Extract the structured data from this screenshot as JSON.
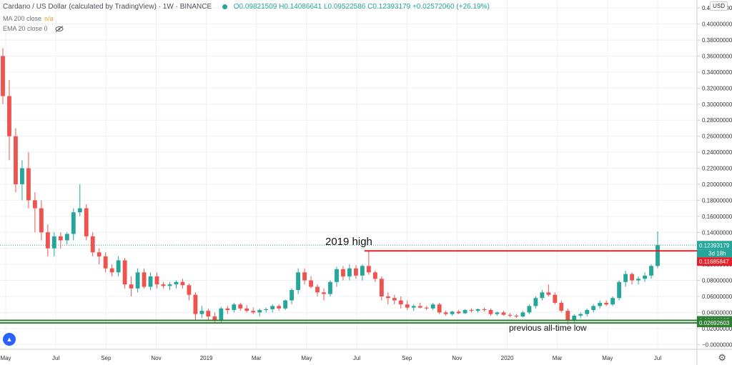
{
  "header": {
    "title": "Cardano / US Dollar (calculated by TradingView) · 1W · BINANCE",
    "ohlc": "O0.09821509 H0.14086641 L0.09522586 C0.12393179 +0.02572060 (+26.19%)"
  },
  "indicators": {
    "ma": {
      "label": "MA 200 close",
      "value": "n/a"
    },
    "ema": {
      "label": "EMA 20 close",
      "value": "0"
    }
  },
  "currency_badge": "USD",
  "colors": {
    "up": "#26a69a",
    "down": "#ef5350",
    "resistance": "#e2202a",
    "support": "#2e7d32",
    "price_line": "#26a69a"
  },
  "icons": {
    "eye": "eye-slash-icon",
    "logo": "tradingview-logo-icon",
    "settings": "gear-icon"
  },
  "chart_data": {
    "type": "candlestick",
    "timeframe": "1W",
    "x_tick_labels": [
      "May",
      "Jul",
      "Sep",
      "Nov",
      "2019",
      "Mar",
      "May",
      "Jul",
      "Sep",
      "Nov",
      "2020",
      "Mar",
      "May",
      "Jul"
    ],
    "y_tick_labels": [
      "0.42000000",
      "0.40000000",
      "0.38000000",
      "0.36000000",
      "0.34000000",
      "0.32000000",
      "0.30000000",
      "0.28000000",
      "0.26000000",
      "0.24000000",
      "0.22000000",
      "0.20000000",
      "0.18000000",
      "0.16000000",
      "0.14000000",
      "0.12000000",
      "0.10000000",
      "0.08000000",
      "0.06000000",
      "0.04000000",
      "0.02000000",
      "−0.00000000"
    ],
    "ylim": [
      -0.006,
      0.43
    ],
    "current_price": {
      "value": 0.12393179,
      "label": "0.12393179",
      "countdown": "3d 18h"
    },
    "resistance": {
      "value": 0.11685847,
      "label": "0.11685847",
      "annotation": "2019 high"
    },
    "support": [
      {
        "value": 0.03006395,
        "label": "0.03006395"
      },
      {
        "value": 0.02692603,
        "label": "0.02692603",
        "annotation": "previous all-time low"
      }
    ],
    "candles": [
      [
        0.36,
        0.37,
        0.3,
        0.31
      ],
      [
        0.31,
        0.33,
        0.23,
        0.26
      ],
      [
        0.26,
        0.27,
        0.19,
        0.2
      ],
      [
        0.2,
        0.23,
        0.18,
        0.22
      ],
      [
        0.22,
        0.24,
        0.17,
        0.18
      ],
      [
        0.18,
        0.19,
        0.14,
        0.17
      ],
      [
        0.17,
        0.18,
        0.13,
        0.14
      ],
      [
        0.14,
        0.15,
        0.11,
        0.12
      ],
      [
        0.12,
        0.14,
        0.11,
        0.135
      ],
      [
        0.135,
        0.14,
        0.12,
        0.13
      ],
      [
        0.13,
        0.14,
        0.125,
        0.138
      ],
      [
        0.138,
        0.17,
        0.13,
        0.165
      ],
      [
        0.165,
        0.2,
        0.16,
        0.17
      ],
      [
        0.17,
        0.175,
        0.13,
        0.135
      ],
      [
        0.135,
        0.14,
        0.11,
        0.115
      ],
      [
        0.115,
        0.12,
        0.1,
        0.11
      ],
      [
        0.11,
        0.115,
        0.09,
        0.095
      ],
      [
        0.095,
        0.1,
        0.085,
        0.09
      ],
      [
        0.09,
        0.11,
        0.085,
        0.105
      ],
      [
        0.105,
        0.108,
        0.07,
        0.075
      ],
      [
        0.075,
        0.085,
        0.06,
        0.07
      ],
      [
        0.07,
        0.095,
        0.065,
        0.09
      ],
      [
        0.09,
        0.095,
        0.07,
        0.072
      ],
      [
        0.072,
        0.09,
        0.068,
        0.085
      ],
      [
        0.085,
        0.09,
        0.07,
        0.075
      ],
      [
        0.075,
        0.078,
        0.07,
        0.073
      ],
      [
        0.073,
        0.078,
        0.068,
        0.075
      ],
      [
        0.075,
        0.08,
        0.07,
        0.078
      ],
      [
        0.078,
        0.082,
        0.07,
        0.074
      ],
      [
        0.074,
        0.076,
        0.055,
        0.062
      ],
      [
        0.062,
        0.065,
        0.03,
        0.038
      ],
      [
        0.038,
        0.048,
        0.033,
        0.042
      ],
      [
        0.042,
        0.045,
        0.03,
        0.035
      ],
      [
        0.035,
        0.04,
        0.028,
        0.03
      ],
      [
        0.03,
        0.047,
        0.028,
        0.045
      ],
      [
        0.045,
        0.048,
        0.038,
        0.043
      ],
      [
        0.043,
        0.052,
        0.04,
        0.05
      ],
      [
        0.05,
        0.052,
        0.042,
        0.045
      ],
      [
        0.045,
        0.049,
        0.04,
        0.042
      ],
      [
        0.042,
        0.046,
        0.038,
        0.04
      ],
      [
        0.04,
        0.045,
        0.035,
        0.043
      ],
      [
        0.043,
        0.046,
        0.04,
        0.044
      ],
      [
        0.044,
        0.05,
        0.04,
        0.048
      ],
      [
        0.048,
        0.05,
        0.042,
        0.045
      ],
      [
        0.045,
        0.056,
        0.043,
        0.055
      ],
      [
        0.055,
        0.07,
        0.05,
        0.068
      ],
      [
        0.068,
        0.095,
        0.063,
        0.09
      ],
      [
        0.09,
        0.095,
        0.075,
        0.08
      ],
      [
        0.08,
        0.085,
        0.07,
        0.072
      ],
      [
        0.072,
        0.075,
        0.06,
        0.065
      ],
      [
        0.065,
        0.07,
        0.055,
        0.063
      ],
      [
        0.063,
        0.08,
        0.06,
        0.078
      ],
      [
        0.078,
        0.097,
        0.072,
        0.094
      ],
      [
        0.094,
        0.098,
        0.08,
        0.085
      ],
      [
        0.085,
        0.1,
        0.08,
        0.095
      ],
      [
        0.095,
        0.099,
        0.082,
        0.086
      ],
      [
        0.086,
        0.1,
        0.08,
        0.098
      ],
      [
        0.098,
        0.117,
        0.087,
        0.09
      ],
      [
        0.09,
        0.092,
        0.078,
        0.082
      ],
      [
        0.082,
        0.085,
        0.055,
        0.06
      ],
      [
        0.06,
        0.065,
        0.05,
        0.058
      ],
      [
        0.058,
        0.062,
        0.05,
        0.055
      ],
      [
        0.055,
        0.06,
        0.045,
        0.05
      ],
      [
        0.05,
        0.055,
        0.043,
        0.046
      ],
      [
        0.046,
        0.05,
        0.042,
        0.048
      ],
      [
        0.048,
        0.052,
        0.045,
        0.046
      ],
      [
        0.046,
        0.048,
        0.043,
        0.045
      ],
      [
        0.045,
        0.052,
        0.043,
        0.05
      ],
      [
        0.05,
        0.052,
        0.038,
        0.04
      ],
      [
        0.04,
        0.042,
        0.036,
        0.038
      ],
      [
        0.038,
        0.042,
        0.036,
        0.041
      ],
      [
        0.041,
        0.043,
        0.038,
        0.039
      ],
      [
        0.039,
        0.044,
        0.038,
        0.043
      ],
      [
        0.043,
        0.045,
        0.04,
        0.042
      ],
      [
        0.042,
        0.045,
        0.04,
        0.044
      ],
      [
        0.044,
        0.046,
        0.041,
        0.043
      ],
      [
        0.043,
        0.045,
        0.036,
        0.038
      ],
      [
        0.038,
        0.041,
        0.036,
        0.04
      ],
      [
        0.04,
        0.042,
        0.036,
        0.037
      ],
      [
        0.037,
        0.039,
        0.034,
        0.036
      ],
      [
        0.036,
        0.038,
        0.033,
        0.035
      ],
      [
        0.035,
        0.042,
        0.034,
        0.04
      ],
      [
        0.04,
        0.05,
        0.038,
        0.048
      ],
      [
        0.048,
        0.06,
        0.045,
        0.058
      ],
      [
        0.058,
        0.068,
        0.055,
        0.065
      ],
      [
        0.065,
        0.075,
        0.06,
        0.062
      ],
      [
        0.062,
        0.065,
        0.05,
        0.052
      ],
      [
        0.052,
        0.055,
        0.04,
        0.042
      ],
      [
        0.042,
        0.045,
        0.025,
        0.03
      ],
      [
        0.03,
        0.038,
        0.028,
        0.036
      ],
      [
        0.036,
        0.04,
        0.033,
        0.038
      ],
      [
        0.038,
        0.045,
        0.035,
        0.043
      ],
      [
        0.043,
        0.05,
        0.04,
        0.048
      ],
      [
        0.048,
        0.055,
        0.045,
        0.052
      ],
      [
        0.052,
        0.055,
        0.048,
        0.05
      ],
      [
        0.05,
        0.06,
        0.048,
        0.058
      ],
      [
        0.058,
        0.08,
        0.055,
        0.078
      ],
      [
        0.078,
        0.092,
        0.072,
        0.088
      ],
      [
        0.088,
        0.09,
        0.075,
        0.08
      ],
      [
        0.08,
        0.085,
        0.075,
        0.082
      ],
      [
        0.082,
        0.09,
        0.078,
        0.086
      ],
      [
        0.086,
        0.1,
        0.082,
        0.098
      ],
      [
        0.098,
        0.14086641,
        0.09522586,
        0.12393179
      ]
    ]
  }
}
